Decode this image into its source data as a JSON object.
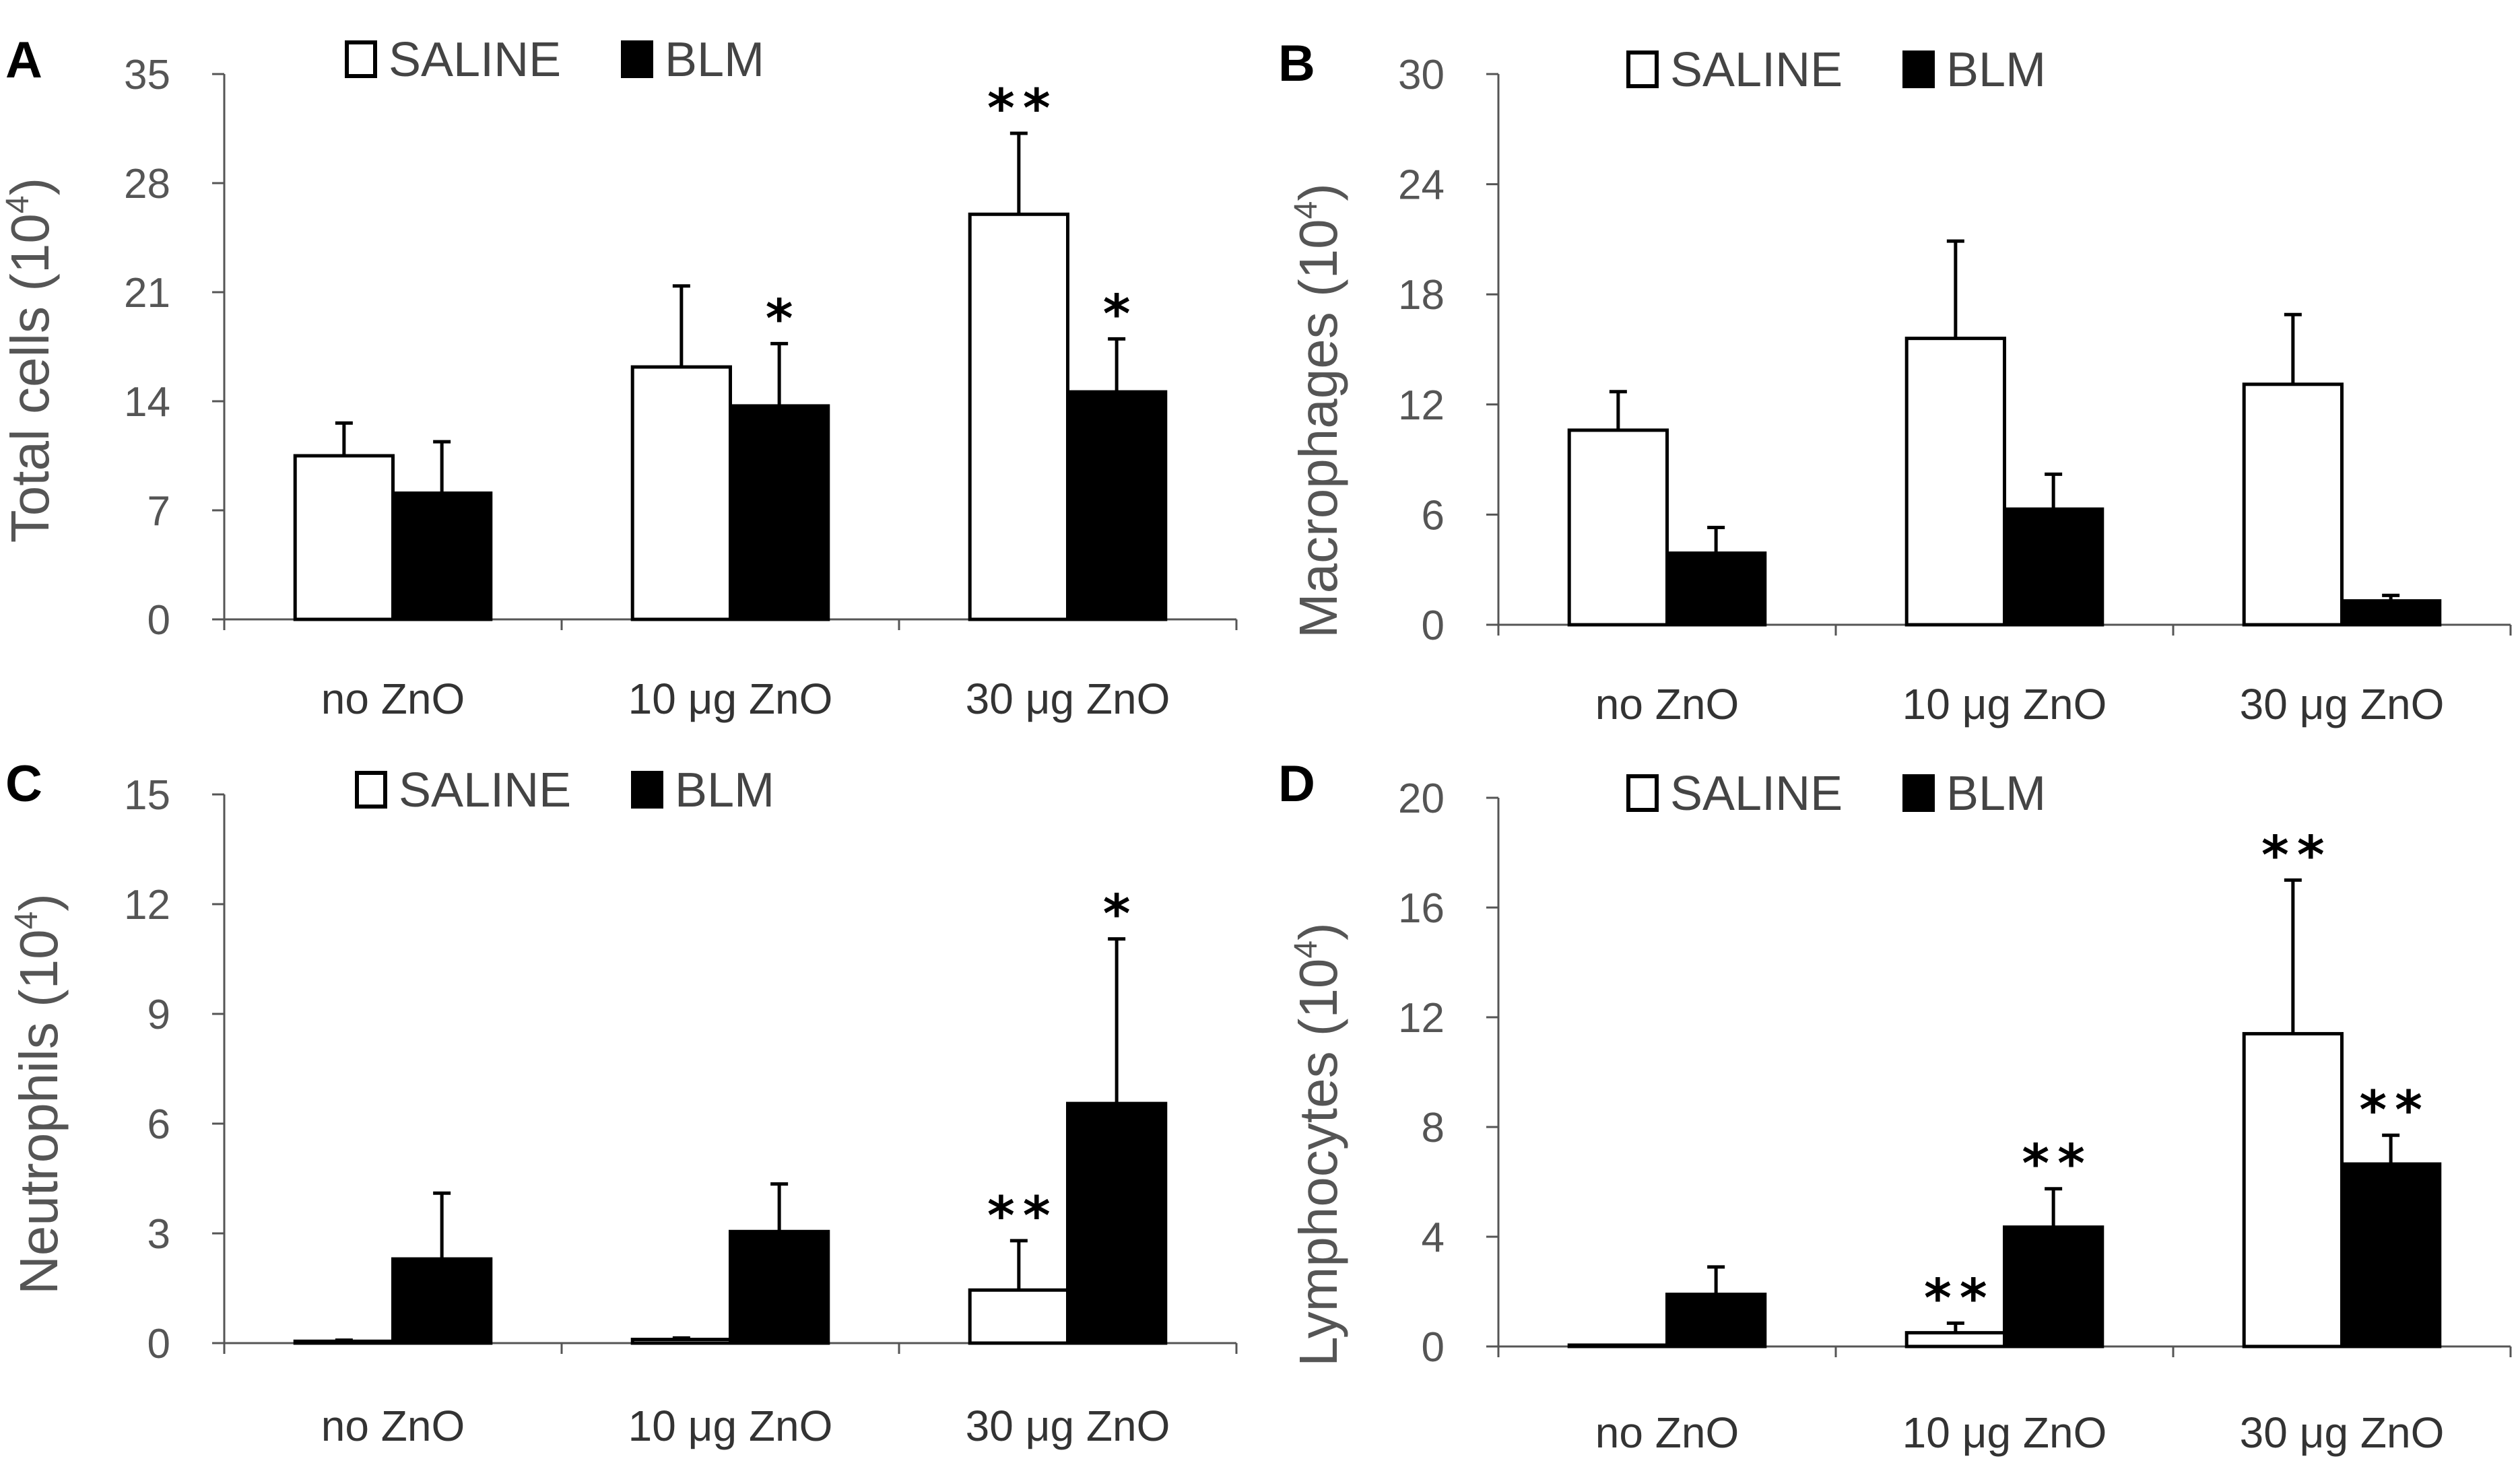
{
  "chart_data": [
    {
      "type": "bar",
      "panel_label": "A",
      "title": "",
      "xlabel": "",
      "ylabel": "Total cells (10",
      "ylabel_sup": "4",
      "ylabel_suffix": ")",
      "ylim": [
        0,
        35
      ],
      "yticks": [
        0,
        7,
        14,
        21,
        28,
        35
      ],
      "ytick_labels": [
        "0",
        "7",
        "14",
        "21",
        "28",
        "35"
      ],
      "categories": [
        "no ZnO",
        "10 μg ZnO",
        "30 μg ZnO"
      ],
      "legend": [
        "SALINE",
        "BLM"
      ],
      "legend_position": "top",
      "series": [
        {
          "name": "SALINE",
          "fill": "#ffffff",
          "values": [
            10.5,
            16.2,
            26.0
          ],
          "errors": [
            2.1,
            5.2,
            5.2
          ],
          "significance": [
            "",
            "",
            "**"
          ]
        },
        {
          "name": "BLM",
          "fill": "#000000",
          "values": [
            8.1,
            13.7,
            14.6
          ],
          "errors": [
            3.3,
            4.0,
            3.4
          ],
          "significance": [
            "",
            "*",
            "*"
          ]
        }
      ]
    },
    {
      "type": "bar",
      "panel_label": "B",
      "title": "",
      "xlabel": "",
      "ylabel": "Macrophages (10",
      "ylabel_sup": "4",
      "ylabel_suffix": ")",
      "ylim": [
        0,
        30
      ],
      "yticks": [
        0,
        6,
        12,
        18,
        24,
        30
      ],
      "ytick_labels": [
        "0",
        "6",
        "12",
        "18",
        "24",
        "30"
      ],
      "categories": [
        "no ZnO",
        "10 μg ZnO",
        "30 μg ZnO"
      ],
      "legend": [
        "SALINE",
        "BLM"
      ],
      "legend_position": "top",
      "series": [
        {
          "name": "SALINE",
          "fill": "#ffffff",
          "values": [
            10.6,
            15.6,
            13.1
          ],
          "errors": [
            2.1,
            5.3,
            3.8
          ],
          "significance": [
            "",
            "",
            ""
          ]
        },
        {
          "name": "BLM",
          "fill": "#000000",
          "values": [
            3.9,
            6.3,
            1.3
          ],
          "errors": [
            1.4,
            1.9,
            0.3
          ],
          "significance": [
            "",
            "",
            ""
          ]
        }
      ]
    },
    {
      "type": "bar",
      "panel_label": "C",
      "title": "",
      "xlabel": "",
      "ylabel": "Neutrophils (10",
      "ylabel_sup": "4",
      "ylabel_suffix": ")",
      "ylim": [
        0,
        15
      ],
      "yticks": [
        0,
        3,
        6,
        9,
        12,
        15
      ],
      "ytick_labels": [
        "0",
        "3",
        "6",
        "9",
        "12",
        "15"
      ],
      "categories": [
        "no ZnO",
        "10 μg ZnO",
        "30 μg ZnO"
      ],
      "legend": [
        "SALINE",
        "BLM"
      ],
      "legend_position": "top",
      "series": [
        {
          "name": "SALINE",
          "fill": "#ffffff",
          "values": [
            0.05,
            0.1,
            1.45
          ],
          "errors": [
            0.03,
            0.04,
            1.35
          ],
          "significance": [
            "",
            "",
            "**"
          ]
        },
        {
          "name": "BLM",
          "fill": "#000000",
          "values": [
            2.3,
            3.05,
            6.55
          ],
          "errors": [
            1.8,
            1.3,
            4.5
          ],
          "significance": [
            "",
            "",
            "*"
          ]
        }
      ]
    },
    {
      "type": "bar",
      "panel_label": "D",
      "title": "",
      "xlabel": "",
      "ylabel": "Lymphocytes (10",
      "ylabel_sup": "4",
      "ylabel_suffix": ")",
      "ylim": [
        0,
        20
      ],
      "yticks": [
        0,
        4,
        8,
        12,
        16,
        20
      ],
      "ytick_labels": [
        "0",
        "4",
        "8",
        "12",
        "16",
        "20"
      ],
      "categories": [
        "no ZnO",
        "10 μg ZnO",
        "30 μg ZnO"
      ],
      "legend": [
        "SALINE",
        "BLM"
      ],
      "legend_position": "top",
      "series": [
        {
          "name": "SALINE",
          "fill": "#ffffff",
          "values": [
            0.03,
            0.5,
            11.4
          ],
          "errors": [
            0.01,
            0.35,
            5.6
          ],
          "significance": [
            "",
            "**",
            "**"
          ]
        },
        {
          "name": "BLM",
          "fill": "#000000",
          "values": [
            1.9,
            4.35,
            6.65
          ],
          "errors": [
            1.0,
            1.4,
            1.05
          ],
          "significance": [
            "",
            "**",
            "**"
          ]
        }
      ]
    }
  ]
}
